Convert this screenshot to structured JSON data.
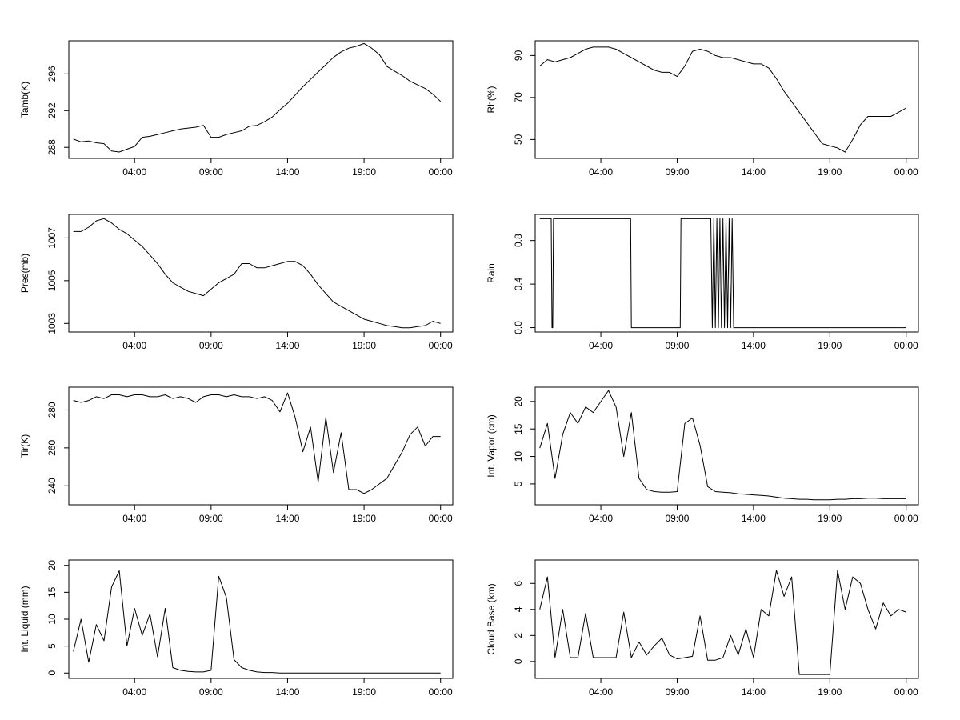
{
  "chart_data": [
    {
      "type": "line",
      "ylabel": "Tamb(K)",
      "x": [
        0.0,
        0.5,
        1.0,
        1.5,
        2.0,
        2.5,
        3.0,
        3.5,
        4.0,
        4.5,
        5.0,
        5.5,
        6.0,
        6.5,
        7.0,
        7.5,
        8.0,
        8.5,
        9.0,
        9.5,
        10.0,
        10.5,
        11.0,
        11.5,
        12.0,
        12.5,
        13.0,
        13.5,
        14.0,
        14.5,
        15.0,
        15.5,
        16.0,
        16.5,
        17.0,
        17.5,
        18.0,
        18.5,
        19.0,
        19.5,
        20.0,
        20.5,
        21.0,
        21.5,
        22.0,
        22.5,
        23.0,
        23.5,
        24.0
      ],
      "xticks": [
        4,
        9,
        14,
        19,
        24
      ],
      "xtick_labels": [
        "04:00",
        "09:00",
        "14:00",
        "19:00",
        "00:00"
      ],
      "xlim": [
        -0.3,
        24.8
      ],
      "yticks": [
        288,
        292,
        296
      ],
      "ytick_labels": [
        "288",
        "292",
        "296"
      ],
      "ylim": [
        286.8,
        299.6
      ],
      "values": [
        288.9,
        288.6,
        288.7,
        288.5,
        288.4,
        287.6,
        287.5,
        287.8,
        288.1,
        289.1,
        289.2,
        289.4,
        289.6,
        289.8,
        290.0,
        290.1,
        290.2,
        290.4,
        289.1,
        289.1,
        289.4,
        289.6,
        289.8,
        290.3,
        290.4,
        290.8,
        291.3,
        292.1,
        292.8,
        293.7,
        294.6,
        295.4,
        296.2,
        297.0,
        297.8,
        298.4,
        298.8,
        299.0,
        299.3,
        298.8,
        298.1,
        296.8,
        296.3,
        295.8,
        295.2,
        294.8,
        294.4,
        293.8,
        293.0
      ]
    },
    {
      "type": "line",
      "ylabel": "Rh(%)",
      "x": [
        0.0,
        0.5,
        1.0,
        1.5,
        2.0,
        2.5,
        3.0,
        3.5,
        4.0,
        4.5,
        5.0,
        5.5,
        6.0,
        6.5,
        7.0,
        7.5,
        8.0,
        8.5,
        9.0,
        9.5,
        10.0,
        10.5,
        11.0,
        11.5,
        12.0,
        12.5,
        13.0,
        13.5,
        14.0,
        14.5,
        15.0,
        15.5,
        16.0,
        16.5,
        17.0,
        17.5,
        18.0,
        18.5,
        19.0,
        19.5,
        20.0,
        20.5,
        21.0,
        21.5,
        22.0,
        22.5,
        23.0,
        23.5,
        24.0
      ],
      "xticks": [
        4,
        9,
        14,
        19,
        24
      ],
      "xtick_labels": [
        "04:00",
        "09:00",
        "14:00",
        "19:00",
        "00:00"
      ],
      "xlim": [
        -0.3,
        24.8
      ],
      "yticks": [
        50,
        70,
        90
      ],
      "ytick_labels": [
        "50",
        "70",
        "90"
      ],
      "ylim": [
        41,
        97
      ],
      "values": [
        85,
        88,
        87,
        88,
        89,
        91,
        93,
        94,
        94,
        94,
        93,
        91,
        89,
        87,
        85,
        83,
        82,
        82,
        80,
        85,
        92,
        93,
        92,
        90,
        89,
        89,
        88,
        87,
        86,
        86,
        84,
        79,
        73,
        68,
        63,
        58,
        53,
        48,
        47,
        46,
        44,
        50,
        57,
        61,
        61,
        61,
        61,
        63,
        65
      ]
    },
    {
      "type": "line",
      "ylabel": "Pres(mb)",
      "x": [
        0.0,
        0.5,
        1.0,
        1.5,
        2.0,
        2.5,
        3.0,
        3.5,
        4.0,
        4.5,
        5.0,
        5.5,
        6.0,
        6.5,
        7.0,
        7.5,
        8.0,
        8.5,
        9.0,
        9.5,
        10.0,
        10.5,
        11.0,
        11.5,
        12.0,
        12.5,
        13.0,
        13.5,
        14.0,
        14.5,
        15.0,
        15.5,
        16.0,
        16.5,
        17.0,
        17.5,
        18.0,
        18.5,
        19.0,
        19.5,
        20.0,
        20.5,
        21.0,
        21.5,
        22.0,
        22.5,
        23.0,
        23.5,
        24.0
      ],
      "xticks": [
        4,
        9,
        14,
        19,
        24
      ],
      "xtick_labels": [
        "04:00",
        "09:00",
        "14:00",
        "19:00",
        "00:00"
      ],
      "xlim": [
        -0.3,
        24.8
      ],
      "yticks": [
        1003,
        1005,
        1007
      ],
      "ytick_labels": [
        "1003",
        "1005",
        "1007"
      ],
      "ylim": [
        1002.6,
        1008.1
      ],
      "values": [
        1007.3,
        1007.3,
        1007.5,
        1007.8,
        1007.9,
        1007.7,
        1007.4,
        1007.2,
        1006.9,
        1006.6,
        1006.2,
        1005.8,
        1005.3,
        1004.9,
        1004.7,
        1004.5,
        1004.4,
        1004.3,
        1004.6,
        1004.9,
        1005.1,
        1005.3,
        1005.8,
        1005.8,
        1005.6,
        1005.6,
        1005.7,
        1005.8,
        1005.9,
        1005.9,
        1005.7,
        1005.3,
        1004.8,
        1004.4,
        1004.0,
        1003.8,
        1003.6,
        1003.4,
        1003.2,
        1003.1,
        1003.0,
        1002.9,
        1002.85,
        1002.8,
        1002.8,
        1002.85,
        1002.9,
        1003.1,
        1003.0
      ]
    },
    {
      "type": "line",
      "ylabel": "Rain",
      "x": [
        0.0,
        0.75,
        0.8,
        0.85,
        0.9,
        5.95,
        6.0,
        9.2,
        9.25,
        11.2,
        11.3,
        11.4,
        11.5,
        11.6,
        11.7,
        11.8,
        11.9,
        12.0,
        12.1,
        12.2,
        12.3,
        12.4,
        12.5,
        12.6,
        12.7,
        12.8,
        24.0
      ],
      "xticks": [
        4,
        9,
        14,
        19,
        24
      ],
      "xtick_labels": [
        "04:00",
        "09:00",
        "14:00",
        "19:00",
        "00:00"
      ],
      "xlim": [
        -0.3,
        24.8
      ],
      "yticks": [
        0.0,
        0.4,
        0.8
      ],
      "ytick_labels": [
        "0.0",
        "0.4",
        "0.8"
      ],
      "ylim": [
        -0.04,
        1.04
      ],
      "values": [
        1,
        1,
        0,
        0,
        1,
        1,
        0,
        0,
        1,
        1,
        0,
        1,
        0,
        1,
        0,
        1,
        0,
        1,
        0,
        1,
        0,
        1,
        0,
        1,
        0,
        0,
        0
      ]
    },
    {
      "type": "line",
      "ylabel": "Tir(K)",
      "x": [
        0.0,
        0.5,
        1.0,
        1.5,
        2.0,
        2.5,
        3.0,
        3.5,
        4.0,
        4.5,
        5.0,
        5.5,
        6.0,
        6.5,
        7.0,
        7.5,
        8.0,
        8.5,
        9.0,
        9.5,
        10.0,
        10.5,
        11.0,
        11.5,
        12.0,
        12.5,
        13.0,
        13.5,
        14.0,
        14.5,
        15.0,
        15.5,
        16.0,
        16.5,
        17.0,
        17.5,
        18.0,
        18.5,
        19.0,
        19.5,
        20.0,
        20.5,
        21.0,
        21.5,
        22.0,
        22.5,
        23.0,
        23.5,
        24.0
      ],
      "xticks": [
        4,
        9,
        14,
        19,
        24
      ],
      "xtick_labels": [
        "04:00",
        "09:00",
        "14:00",
        "19:00",
        "00:00"
      ],
      "xlim": [
        -0.3,
        24.8
      ],
      "yticks": [
        240,
        260,
        280
      ],
      "ytick_labels": [
        "240",
        "260",
        "280"
      ],
      "ylim": [
        230,
        292
      ],
      "values": [
        285,
        284,
        285,
        287,
        286,
        288,
        288,
        287,
        288,
        288,
        287,
        287,
        288,
        286,
        287,
        286,
        284,
        287,
        288,
        288,
        287,
        288,
        287,
        287,
        286,
        287,
        285,
        279,
        289,
        276,
        258,
        271,
        242,
        276,
        247,
        268,
        238,
        238,
        236,
        238,
        241,
        244,
        251,
        258,
        267,
        271,
        261,
        266,
        266
      ]
    },
    {
      "type": "line",
      "ylabel": "Int. Vapor (cm)",
      "x": [
        0.0,
        0.5,
        1.0,
        1.5,
        2.0,
        2.5,
        3.0,
        3.5,
        4.0,
        4.5,
        5.0,
        5.5,
        6.0,
        6.5,
        7.0,
        7.5,
        8.0,
        8.5,
        9.0,
        9.5,
        10.0,
        10.5,
        11.0,
        11.5,
        12.0,
        12.5,
        13.0,
        13.5,
        14.0,
        14.5,
        15.0,
        15.5,
        16.0,
        16.5,
        17.0,
        17.5,
        18.0,
        18.5,
        19.0,
        19.5,
        20.0,
        20.5,
        21.0,
        21.5,
        22.0,
        22.5,
        23.0,
        23.5,
        24.0
      ],
      "xticks": [
        4,
        9,
        14,
        19,
        24
      ],
      "xtick_labels": [
        "04:00",
        "09:00",
        "14:00",
        "19:00",
        "00:00"
      ],
      "xlim": [
        -0.3,
        24.8
      ],
      "yticks": [
        5,
        10,
        15,
        20
      ],
      "ytick_labels": [
        "5",
        "10",
        "15",
        "20"
      ],
      "ylim": [
        1.2,
        22.6
      ],
      "values": [
        11.5,
        16,
        6,
        14,
        18,
        16,
        19,
        18,
        20,
        22,
        19,
        10,
        18,
        6,
        4,
        3.6,
        3.5,
        3.5,
        3.6,
        16,
        17,
        12,
        4.5,
        3.6,
        3.5,
        3.4,
        3.2,
        3.1,
        3.0,
        2.9,
        2.8,
        2.6,
        2.4,
        2.3,
        2.2,
        2.2,
        2.1,
        2.1,
        2.1,
        2.2,
        2.2,
        2.3,
        2.3,
        2.4,
        2.4,
        2.3,
        2.3,
        2.3,
        2.3
      ]
    },
    {
      "type": "line",
      "ylabel": "Int. Liquid (mm)",
      "x": [
        0.0,
        0.5,
        1.0,
        1.5,
        2.0,
        2.5,
        3.0,
        3.5,
        4.0,
        4.5,
        5.0,
        5.5,
        6.0,
        6.5,
        7.0,
        7.5,
        8.0,
        8.5,
        9.0,
        9.5,
        10.0,
        10.5,
        11.0,
        11.5,
        12.0,
        12.5,
        13.0,
        13.5,
        14.0,
        14.5,
        15.0,
        15.5,
        16.0,
        16.5,
        17.0,
        17.5,
        18.0,
        18.5,
        19.0,
        19.5,
        20.0,
        20.5,
        21.0,
        21.5,
        22.0,
        22.5,
        23.0,
        23.5,
        24.0
      ],
      "xticks": [
        4,
        9,
        14,
        19,
        24
      ],
      "xtick_labels": [
        "04:00",
        "09:00",
        "14:00",
        "19:00",
        "00:00"
      ],
      "xlim": [
        -0.3,
        24.8
      ],
      "yticks": [
        0,
        5,
        10,
        15,
        20
      ],
      "ytick_labels": [
        "0",
        "5",
        "10",
        "15",
        "20"
      ],
      "ylim": [
        -1,
        21
      ],
      "values": [
        4,
        10,
        2,
        9,
        6,
        16,
        19,
        5,
        12,
        7,
        11,
        3,
        12,
        1,
        0.5,
        0.3,
        0.2,
        0.2,
        0.5,
        18,
        14,
        2.5,
        1,
        0.5,
        0.2,
        0.1,
        0.1,
        0,
        0,
        0,
        0,
        0,
        0,
        0,
        0,
        0,
        0,
        0,
        0,
        0,
        0,
        0,
        0,
        0,
        0,
        0,
        0,
        0,
        0
      ]
    },
    {
      "type": "line",
      "ylabel": "Cloud Base (km)",
      "x": [
        0.0,
        0.5,
        1.0,
        1.5,
        2.0,
        2.5,
        3.0,
        3.5,
        4.0,
        4.5,
        5.0,
        5.5,
        6.0,
        6.5,
        7.0,
        7.5,
        8.0,
        8.5,
        9.0,
        9.5,
        10.0,
        10.5,
        11.0,
        11.5,
        12.0,
        12.5,
        13.0,
        13.5,
        14.0,
        14.5,
        15.0,
        15.5,
        16.0,
        16.5,
        17.0,
        17.5,
        18.0,
        18.5,
        19.0,
        19.5,
        20.0,
        20.5,
        21.0,
        21.5,
        22.0,
        22.5,
        23.0,
        23.5,
        24.0
      ],
      "xticks": [
        4,
        9,
        14,
        19,
        24
      ],
      "xtick_labels": [
        "04:00",
        "09:00",
        "14:00",
        "19:00",
        "00:00"
      ],
      "xlim": [
        -0.3,
        24.8
      ],
      "yticks": [
        0,
        2,
        4,
        6
      ],
      "ytick_labels": [
        "0",
        "2",
        "4",
        "6"
      ],
      "ylim": [
        -1.3,
        7.8
      ],
      "values": [
        4,
        6.5,
        0.3,
        4,
        0.3,
        0.3,
        3.7,
        0.3,
        0.3,
        0.3,
        0.3,
        3.8,
        0.3,
        1.5,
        0.5,
        1.2,
        1.8,
        0.5,
        0.2,
        0.3,
        0.4,
        3.5,
        0.1,
        0.1,
        0.3,
        2,
        0.5,
        2.5,
        0.3,
        4,
        3.5,
        7,
        5,
        6.5,
        -1,
        -1,
        -1,
        -1,
        -1,
        7,
        4,
        6.5,
        6,
        4,
        2.5,
        4.5,
        3.5,
        4,
        3.8
      ]
    }
  ]
}
